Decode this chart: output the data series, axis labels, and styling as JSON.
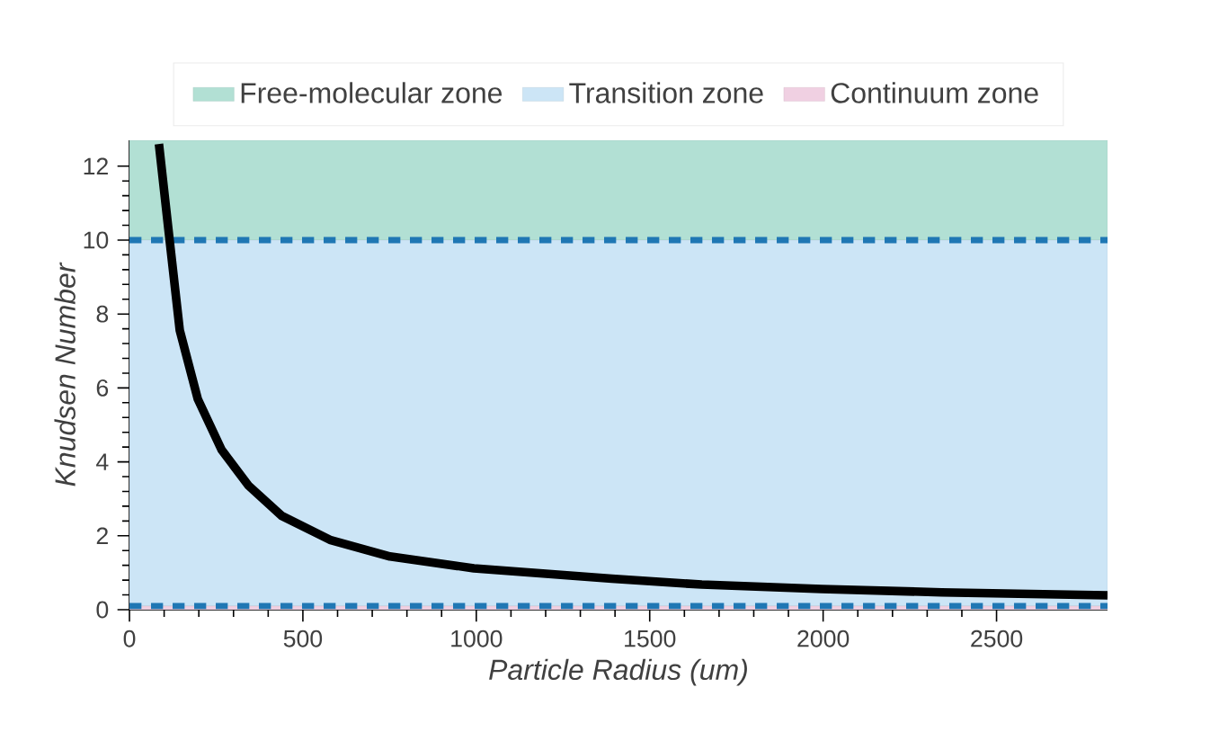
{
  "chart_data": {
    "type": "line",
    "xlabel": "Particle Radius (um)",
    "ylabel": "Knudsen Number",
    "x": [
      85,
      116,
      145,
      197,
      266,
      344,
      439,
      578,
      751,
      993,
      1391,
      1650,
      1996,
      2342,
      2820
    ],
    "series": [
      {
        "color": "#000000",
        "values": [
          12.6,
          9.98,
          7.56,
          5.7,
          4.32,
          3.35,
          2.54,
          1.89,
          1.44,
          1.12,
          0.84,
          0.68,
          0.56,
          0.47,
          0.39
        ]
      }
    ],
    "xlim": [
      0,
      2820
    ],
    "ylim": [
      0,
      12.7
    ],
    "xticks": [
      0,
      500,
      1000,
      1500,
      2000,
      2500
    ],
    "yticks": [
      0,
      2,
      4,
      6,
      8,
      10,
      12
    ],
    "bands": [
      {
        "axis": "y",
        "from": 10,
        "to": 12.7,
        "label": "Free-molecular zone",
        "color": "#b2e0d4"
      },
      {
        "axis": "y",
        "from": 0.1,
        "to": 10,
        "label": "Transition zone",
        "color": "#cce5f6"
      },
      {
        "axis": "y",
        "from": 0,
        "to": 0.1,
        "label": "Continuum zone",
        "color": "#f0d0e2"
      }
    ],
    "ref_lines": [
      {
        "axis": "y",
        "value": 10,
        "color": "#1f77b4",
        "line_style": "dashed"
      },
      {
        "axis": "y",
        "value": 0.1,
        "color": "#1f77b4",
        "line_style": "dashed"
      }
    ],
    "grid": true,
    "legend": "top",
    "line_style": "solid",
    "marker": "none"
  }
}
